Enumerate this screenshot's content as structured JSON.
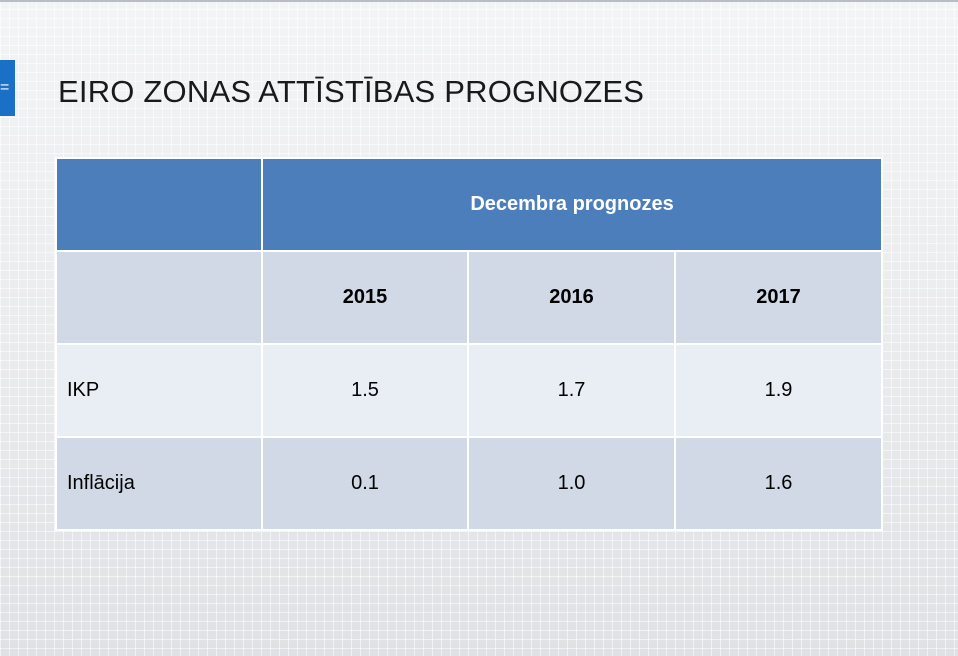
{
  "slide": {
    "title": "EIRO ZONAS ATTĪSTĪBAS PROGNOZES",
    "marker_glyph": "="
  },
  "table": {
    "group_header": "Decembra prognozes",
    "years": [
      "2015",
      "2016",
      "2017"
    ],
    "rows": [
      {
        "label": "IKP",
        "values": [
          "1.5",
          "1.7",
          "1.9"
        ]
      },
      {
        "label": "Inflācija",
        "values": [
          "0.1",
          "1.0",
          "1.6"
        ]
      }
    ]
  },
  "colors": {
    "header_bg": "#4d7ebc",
    "row_dark": "#d1d8e6",
    "row_light": "#e9edf4",
    "marker": "#1a6fc6"
  }
}
